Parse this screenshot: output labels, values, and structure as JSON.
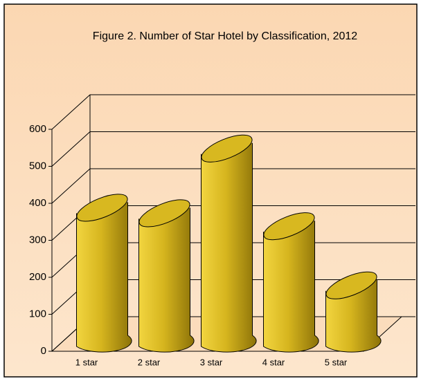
{
  "chart_data": {
    "type": "bar3d",
    "title": "Figure 2. Number of Star Hotel by Classification, 2012",
    "categories": [
      "1 star",
      "2 star",
      "3 star",
      "4 star",
      "5 star"
    ],
    "values": [
      360,
      345,
      520,
      310,
      150
    ],
    "color": "#d4b21c",
    "ylim": [
      0,
      600
    ],
    "yticks": [
      0,
      100,
      200,
      300,
      400,
      500,
      600
    ],
    "grid": true
  }
}
